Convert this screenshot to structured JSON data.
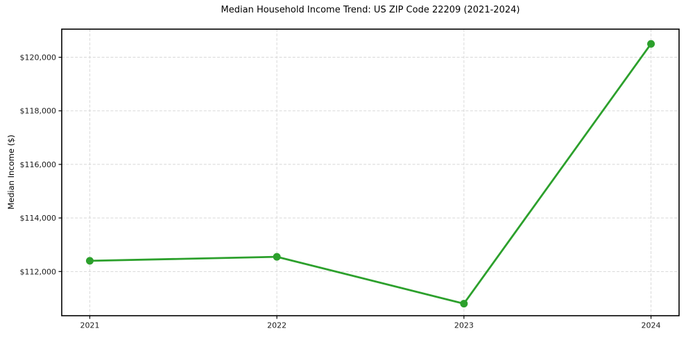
{
  "chart_data": {
    "type": "line",
    "title": "Median Household Income Trend: US ZIP Code 22209 (2021-2024)",
    "xlabel": "",
    "ylabel": "Median Income ($)",
    "x": [
      2021,
      2022,
      2023,
      2024
    ],
    "values": [
      112400,
      112550,
      110800,
      120500
    ],
    "x_tick_labels": [
      "2021",
      "2022",
      "2023",
      "2024"
    ],
    "y_ticks": [
      112000,
      114000,
      116000,
      118000,
      120000
    ],
    "y_tick_labels": [
      "$112,000",
      "$114,000",
      "$116,000",
      "$118,000",
      "$120,000"
    ],
    "xlim": [
      2020.85,
      2024.15
    ],
    "ylim": [
      110350,
      121050
    ],
    "grid": true,
    "grid_style": "dashed",
    "legend": false,
    "line_color": "#2ca02c",
    "marker_color": "#2ca02c",
    "grid_color": "#d8d8d8",
    "axis_color": "#000000",
    "background": "#ffffff"
  }
}
